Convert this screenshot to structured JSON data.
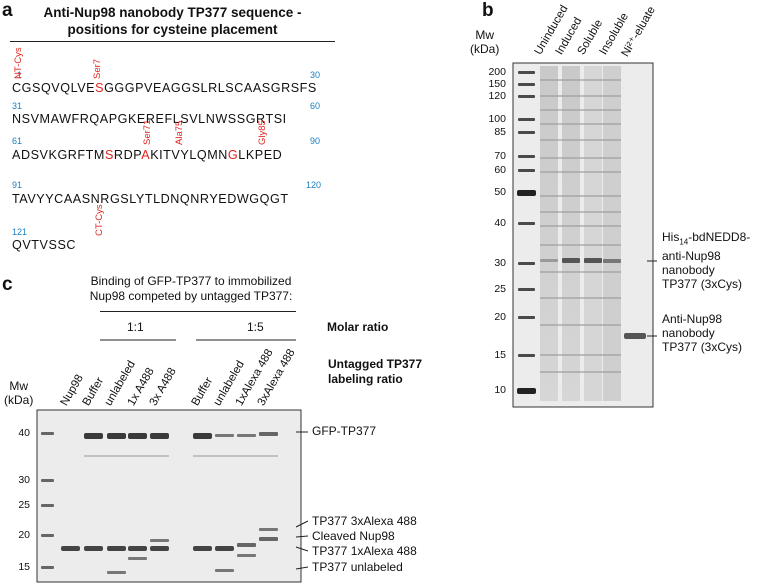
{
  "panel_a": {
    "letter": "a",
    "title_line1": "Anti-Nup98 nanobody TP377 sequence -",
    "title_line2": "positions for cysteine placement",
    "rows": [
      {
        "start": "1",
        "end": "30",
        "segments": [
          {
            "text": "CGSQVQLVE",
            "red": false
          },
          {
            "text": "S",
            "red": true
          },
          {
            "text": "GGGPVEAGGSLRLSCAASGRSFS",
            "red": false
          }
        ]
      },
      {
        "start": "31",
        "end": "60",
        "segments": [
          {
            "text": "NSVMAWFRQAPGKEREFLSVLNWSSGRTSI",
            "red": false
          }
        ]
      },
      {
        "start": "61",
        "end": "90",
        "segments": [
          {
            "text": "ADSVKGRFTM",
            "red": false
          },
          {
            "text": "S",
            "red": true
          },
          {
            "text": "RDP",
            "red": false
          },
          {
            "text": "A",
            "red": true
          },
          {
            "text": "KITVYLQMN",
            "red": false
          },
          {
            "text": "G",
            "red": true
          },
          {
            "text": "LKPED",
            "red": false
          }
        ]
      },
      {
        "start": "91",
        "end": "120",
        "segments": [
          {
            "text": "TAVYYCAASNRGSLYTLDNQNRYEDWGQGT",
            "red": false
          }
        ]
      },
      {
        "start": "121",
        "end": "",
        "segments": [
          {
            "text": "QVTVSSC",
            "red": false
          }
        ]
      }
    ],
    "marks": {
      "nt_cys": "NT-Cys",
      "ser7": "Ser7",
      "ser71": "Ser71",
      "ala75": "Ala75",
      "gly85": "Gly85",
      "ct_cys": "CT-Cys"
    }
  },
  "panel_b": {
    "letter": "b",
    "mw_label_line1": "Mw",
    "mw_label_line2": "(kDa)",
    "lanes": [
      "Uninduced",
      "Induced",
      "Soluble",
      "Insoluble",
      "Ni²⁺-eluate"
    ],
    "markers": [
      "200",
      "150",
      "120",
      "100",
      "85",
      "70",
      "60",
      "50",
      "40",
      "30",
      "25",
      "20",
      "15",
      "10"
    ],
    "annotation1": {
      "line1_pre": "His",
      "line1_sub": "14",
      "line1_post": "-bdNEDD8-",
      "line2": "anti-Nup98",
      "line3": "nanobody",
      "line4": "TP377 (3xCys)"
    },
    "annotation2": {
      "line1": "Anti-Nup98",
      "line2": "nanobody",
      "line3": "TP377 (3xCys)"
    }
  },
  "panel_c": {
    "letter": "c",
    "header_line1": "Binding of GFP-TP377 to immobilized",
    "header_line2": "Nup98 competed by untagged TP377:",
    "ratio_1": "1:1",
    "ratio_2": "1:5",
    "molar_ratio": "Molar ratio",
    "untagged_line1": "Untagged TP377",
    "untagged_line2": "labeling ratio",
    "mw_label_line1": "Mw",
    "mw_label_line2": "(kDa)",
    "lanes": [
      "Nup98",
      "Buffer",
      "unlabeled",
      "1x A488",
      "3x A488",
      "Buffer",
      "unlabeled",
      "1xAlexa 488",
      "3xAlexa 488"
    ],
    "markers": [
      "40",
      "30",
      "25",
      "20",
      "15"
    ],
    "band_labels": [
      "GFP-TP377",
      "TP377 3xAlexa 488",
      "Cleaved Nup98",
      "TP377 1xAlexa 488",
      "TP377 unlabeled"
    ]
  }
}
